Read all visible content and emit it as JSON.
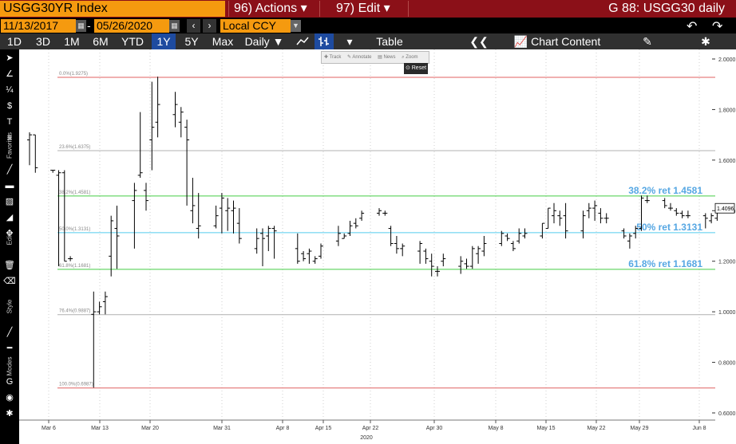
{
  "header": {
    "ticker": "USGG30YR Index",
    "actions": "96) Actions ▾",
    "edit": "97) Edit ▾",
    "window_title": "G 88: USGG30 daily"
  },
  "range": {
    "start": "11/13/2017",
    "dash": "-",
    "end": "05/26/2020",
    "currency": "Local CCY",
    "back_icon": "↶",
    "forward_icon": "↷"
  },
  "toolbar": {
    "periods": [
      "1D",
      "3D",
      "1M",
      "6M",
      "YTD",
      "1Y",
      "5Y",
      "Max"
    ],
    "selected_period": "1Y",
    "frequency": "Daily ▼",
    "table": "Table",
    "collapse": "❮❮",
    "chart_content": "Chart Content",
    "gear": "✱"
  },
  "side_labels": {
    "favorites": "Favorites",
    "edit": "Edit",
    "style": "Style",
    "modes": "Modes"
  },
  "mini_toolbar": {
    "items": [
      "Track",
      "Annotate",
      "News",
      "Zoom"
    ],
    "reset": "Reset"
  },
  "colors": {
    "accent": "#f59a0f",
    "header_bg": "#8b1018",
    "selected": "#1e4ba0",
    "fib_0": "#e06060",
    "fib_236": "#b0b0b0",
    "fib_382": "#44cc44",
    "fib_50": "#55ccee",
    "fib_618": "#44cc44",
    "fib_100": "#e06060",
    "fib_label": "#56a7e3"
  },
  "chart_data": {
    "type": "ohlc",
    "y_axis_ticks": [
      "2.0000",
      "1.8000",
      "1.6000",
      "1.4000",
      "1.2000",
      "1.0000",
      "0.8000",
      "0.6000"
    ],
    "ylim": [
      0.6,
      2.0
    ],
    "x_axis_labels": [
      "Mar 6",
      "Mar 13",
      "Mar 20",
      "Mar 31",
      "Apr 8",
      "Apr 15",
      "Apr 22",
      "Apr 30",
      "May 8",
      "May 15",
      "May 22",
      "May 29",
      "Jun 8"
    ],
    "x_axis_year": "2020",
    "last_price_label": "1.4096",
    "last_price": 1.4096,
    "fib_levels": [
      {
        "small": "0.0%(1.9275)",
        "value": 1.9275
      },
      {
        "small": "23.6%(1.6375)",
        "value": 1.6375
      },
      {
        "small": "38.2%(1.4581)",
        "value": 1.4581,
        "big": "38.2% ret 1.4581"
      },
      {
        "small": "50.0%(1.3131)",
        "value": 1.3131,
        "big": "50% ret 1.3131"
      },
      {
        "small": "61.8%(1.1681)",
        "value": 1.1681,
        "big": "61.8% ret 1.1681"
      },
      {
        "small": "76.4%(0.9887)",
        "value": 0.9887
      },
      {
        "small": "100.0%(0.6987)",
        "value": 0.6987
      }
    ],
    "bars": [
      {
        "d": "2020-02-27",
        "h": 1.71,
        "l": 1.58,
        "o": 1.68,
        "c": 1.7
      },
      {
        "d": "2020-02-28",
        "h": 1.7,
        "l": 1.55,
        "o": 1.7,
        "c": 1.57
      },
      {
        "d": "2020-03-02",
        "h": 1.56,
        "l": 1.55,
        "o": 1.56,
        "c": 1.56
      },
      {
        "d": "2020-03-03",
        "h": 1.56,
        "l": 1.18,
        "o": 1.54,
        "c": 1.55
      },
      {
        "d": "2020-03-04",
        "h": 1.56,
        "l": 1.2,
        "o": 1.55,
        "c": 1.2
      },
      {
        "d": "2020-03-05",
        "h": 1.22,
        "l": 1.2,
        "o": 1.21,
        "c": 1.21
      },
      {
        "d": "2020-03-09",
        "h": 1.08,
        "l": 0.7,
        "o": 0.99,
        "c": 1.0
      },
      {
        "d": "2020-03-10",
        "h": 1.04,
        "l": 0.99,
        "o": 1.0,
        "c": 1.02
      },
      {
        "d": "2020-03-11",
        "h": 1.08,
        "l": 0.99,
        "o": 1.04,
        "c": 1.06
      },
      {
        "d": "2020-03-12",
        "h": 1.38,
        "l": 1.14,
        "o": 1.22,
        "c": 1.36
      },
      {
        "d": "2020-03-13",
        "h": 1.42,
        "l": 1.17,
        "o": 1.33,
        "c": 1.3
      },
      {
        "d": "2020-03-16",
        "h": 1.51,
        "l": 1.25,
        "o": 1.44,
        "c": 1.48
      },
      {
        "d": "2020-03-17",
        "h": 1.79,
        "l": 1.53,
        "o": 1.54,
        "c": 1.55
      },
      {
        "d": "2020-03-18",
        "h": 1.51,
        "l": 1.4,
        "o": 1.48,
        "c": 1.44
      },
      {
        "d": "2020-03-19",
        "h": 1.91,
        "l": 1.56,
        "o": 1.68,
        "c": 1.73
      },
      {
        "d": "2020-03-20",
        "h": 1.93,
        "l": 1.69,
        "o": 1.75,
        "c": 1.82
      },
      {
        "d": "2020-03-23",
        "h": 1.87,
        "l": 1.73,
        "o": 1.78,
        "c": 1.82
      },
      {
        "d": "2020-03-24",
        "h": 1.81,
        "l": 1.69,
        "o": 1.75,
        "c": 1.79
      },
      {
        "d": "2020-03-25",
        "h": 1.76,
        "l": 1.42,
        "o": 1.73,
        "c": 1.68
      },
      {
        "d": "2020-03-26",
        "h": 1.53,
        "l": 1.35,
        "o": 1.4,
        "c": 1.42
      },
      {
        "d": "2020-03-27",
        "h": 1.47,
        "l": 1.29,
        "o": 1.33,
        "c": 1.34
      },
      {
        "d": "2020-03-30",
        "h": 1.42,
        "l": 1.33,
        "o": 1.34,
        "c": 1.38
      },
      {
        "d": "2020-03-31",
        "h": 1.47,
        "l": 1.31,
        "o": 1.41,
        "c": 1.45
      },
      {
        "d": "2020-04-01",
        "h": 1.45,
        "l": 1.32,
        "o": 1.4,
        "c": 1.41
      },
      {
        "d": "2020-04-02",
        "h": 1.44,
        "l": 1.31,
        "o": 1.4,
        "c": 1.41
      },
      {
        "d": "2020-04-03",
        "h": 1.41,
        "l": 1.27,
        "o": 1.35,
        "c": 1.29
      },
      {
        "d": "2020-04-06",
        "h": 1.33,
        "l": 1.23,
        "o": 1.25,
        "c": 1.29
      },
      {
        "d": "2020-04-07",
        "h": 1.33,
        "l": 1.18,
        "o": 1.31,
        "c": 1.29
      },
      {
        "d": "2020-04-08",
        "h": 1.34,
        "l": 1.24,
        "o": 1.3,
        "c": 1.33
      },
      {
        "d": "2020-04-09",
        "h": 1.34,
        "l": 1.21,
        "o": 1.33,
        "c": 1.32
      },
      {
        "d": "2020-04-13",
        "h": 1.31,
        "l": 1.19,
        "o": 1.25,
        "c": 1.2
      },
      {
        "d": "2020-04-14",
        "h": 1.24,
        "l": 1.2,
        "o": 1.23,
        "c": 1.21
      },
      {
        "d": "2020-04-15",
        "h": 1.25,
        "l": 1.19,
        "o": 1.23,
        "c": 1.24
      },
      {
        "d": "2020-04-16",
        "h": 1.22,
        "l": 1.19,
        "o": 1.2,
        "c": 1.21
      },
      {
        "d": "2020-04-17",
        "h": 1.27,
        "l": 1.21,
        "o": 1.22,
        "c": 1.26
      },
      {
        "d": "2020-04-20",
        "h": 1.34,
        "l": 1.26,
        "o": 1.28,
        "c": 1.31
      },
      {
        "d": "2020-04-21",
        "h": 1.31,
        "l": 1.29,
        "o": 1.29,
        "c": 1.3
      },
      {
        "d": "2020-04-22",
        "h": 1.36,
        "l": 1.3,
        "o": 1.31,
        "c": 1.34
      },
      {
        "d": "2020-04-23",
        "h": 1.37,
        "l": 1.33,
        "o": 1.35,
        "c": 1.34
      },
      {
        "d": "2020-04-24",
        "h": 1.4,
        "l": 1.36,
        "o": 1.37,
        "c": 1.39
      },
      {
        "d": "2020-04-27",
        "h": 1.41,
        "l": 1.38,
        "o": 1.39,
        "c": 1.4
      },
      {
        "d": "2020-04-28",
        "h": 1.4,
        "l": 1.38,
        "o": 1.39,
        "c": 1.39
      },
      {
        "d": "2020-04-29",
        "h": 1.34,
        "l": 1.26,
        "o": 1.33,
        "c": 1.27
      },
      {
        "d": "2020-04-30",
        "h": 1.3,
        "l": 1.23,
        "o": 1.27,
        "c": 1.25
      },
      {
        "d": "2020-05-01",
        "h": 1.27,
        "l": 1.22,
        "o": 1.25,
        "c": 1.26
      },
      {
        "d": "2020-05-04",
        "h": 1.28,
        "l": 1.19,
        "o": 1.24,
        "c": 1.27
      },
      {
        "d": "2020-05-05",
        "h": 1.25,
        "l": 1.19,
        "o": 1.24,
        "c": 1.21
      },
      {
        "d": "2020-05-06",
        "h": 1.23,
        "l": 1.14,
        "o": 1.2,
        "c": 1.18
      },
      {
        "d": "2020-05-07",
        "h": 1.18,
        "l": 1.14,
        "o": 1.16,
        "c": 1.16
      },
      {
        "d": "2020-05-08",
        "h": 1.23,
        "l": 1.18,
        "o": 1.2,
        "c": 1.21
      },
      {
        "d": "2020-05-11",
        "h": 1.22,
        "l": 1.15,
        "o": 1.18,
        "c": 1.2
      },
      {
        "d": "2020-05-12",
        "h": 1.21,
        "l": 1.17,
        "o": 1.19,
        "c": 1.18
      },
      {
        "d": "2020-05-13",
        "h": 1.26,
        "l": 1.17,
        "o": 1.18,
        "c": 1.25
      },
      {
        "d": "2020-05-14",
        "h": 1.26,
        "l": 1.19,
        "o": 1.23,
        "c": 1.25
      },
      {
        "d": "2020-05-15",
        "h": 1.3,
        "l": 1.22,
        "o": 1.24,
        "c": 1.27
      },
      {
        "d": "2020-05-18",
        "h": 1.32,
        "l": 1.26,
        "o": 1.27,
        "c": 1.31
      },
      {
        "d": "2020-05-19",
        "h": 1.31,
        "l": 1.28,
        "o": 1.3,
        "c": 1.29
      },
      {
        "d": "2020-05-20",
        "h": 1.28,
        "l": 1.24,
        "o": 1.27,
        "c": 1.25
      },
      {
        "d": "2020-05-21",
        "h": 1.33,
        "l": 1.27,
        "o": 1.28,
        "c": 1.31
      },
      {
        "d": "2020-05-22",
        "h": 1.33,
        "l": 1.29,
        "o": 1.3,
        "c": 1.31
      },
      {
        "d": "2020-05-25",
        "h": 1.35,
        "l": 1.29,
        "o": 1.3,
        "c": 1.35
      },
      {
        "d": "2020-05-26",
        "h": 1.41,
        "l": 1.33,
        "o": 1.33,
        "c": 1.41
      },
      {
        "d": "2020-05-27",
        "h": 1.43,
        "l": 1.35,
        "o": 1.38,
        "c": 1.4
      },
      {
        "d": "2020-05-28",
        "h": 1.4,
        "l": 1.34,
        "o": 1.38,
        "c": 1.37
      },
      {
        "d": "2020-05-29",
        "h": 1.43,
        "l": 1.29,
        "o": 1.38,
        "c": 1.32
      },
      {
        "d": "2020-06-01",
        "h": 1.4,
        "l": 1.29,
        "o": 1.32,
        "c": 1.38
      },
      {
        "d": "2020-06-02",
        "h": 1.43,
        "l": 1.37,
        "o": 1.4,
        "c": 1.41
      },
      {
        "d": "2020-06-03",
        "h": 1.44,
        "l": 1.36,
        "o": 1.41,
        "c": 1.42
      },
      {
        "d": "2020-06-04",
        "h": 1.41,
        "l": 1.35,
        "o": 1.39,
        "c": 1.37
      },
      {
        "d": "2020-06-05",
        "h": 1.39,
        "l": 1.35,
        "o": 1.37,
        "c": 1.37
      },
      {
        "d": "2020-06-08",
        "h": 1.33,
        "l": 1.29,
        "o": 1.32,
        "c": 1.3
      },
      {
        "d": "2020-06-09",
        "h": 1.31,
        "l": 1.25,
        "o": 1.28,
        "c": 1.3
      },
      {
        "d": "2020-06-10",
        "h": 1.34,
        "l": 1.29,
        "o": 1.31,
        "c": 1.33
      },
      {
        "d": "2020-06-11",
        "h": 1.46,
        "l": 1.32,
        "o": 1.33,
        "c": 1.45
      },
      {
        "d": "2020-06-12",
        "h": 1.46,
        "l": 1.43,
        "o": 1.44,
        "c": 1.44
      },
      {
        "d": "2020-06-15",
        "h": 1.45,
        "l": 1.41,
        "o": 1.44,
        "c": 1.42
      },
      {
        "d": "2020-06-16",
        "h": 1.43,
        "l": 1.4,
        "o": 1.41,
        "c": 1.41
      },
      {
        "d": "2020-06-17",
        "h": 1.41,
        "l": 1.38,
        "o": 1.4,
        "c": 1.39
      },
      {
        "d": "2020-06-18",
        "h": 1.4,
        "l": 1.37,
        "o": 1.39,
        "c": 1.38
      },
      {
        "d": "2020-06-19",
        "h": 1.4,
        "l": 1.37,
        "o": 1.38,
        "c": 1.38
      },
      {
        "d": "2020-06-22",
        "h": 1.39,
        "l": 1.33,
        "o": 1.38,
        "c": 1.37
      },
      {
        "d": "2020-06-23",
        "h": 1.39,
        "l": 1.35,
        "o": 1.36,
        "c": 1.38
      },
      {
        "d": "2020-06-24",
        "h": 1.42,
        "l": 1.36,
        "o": 1.37,
        "c": 1.41
      }
    ]
  }
}
